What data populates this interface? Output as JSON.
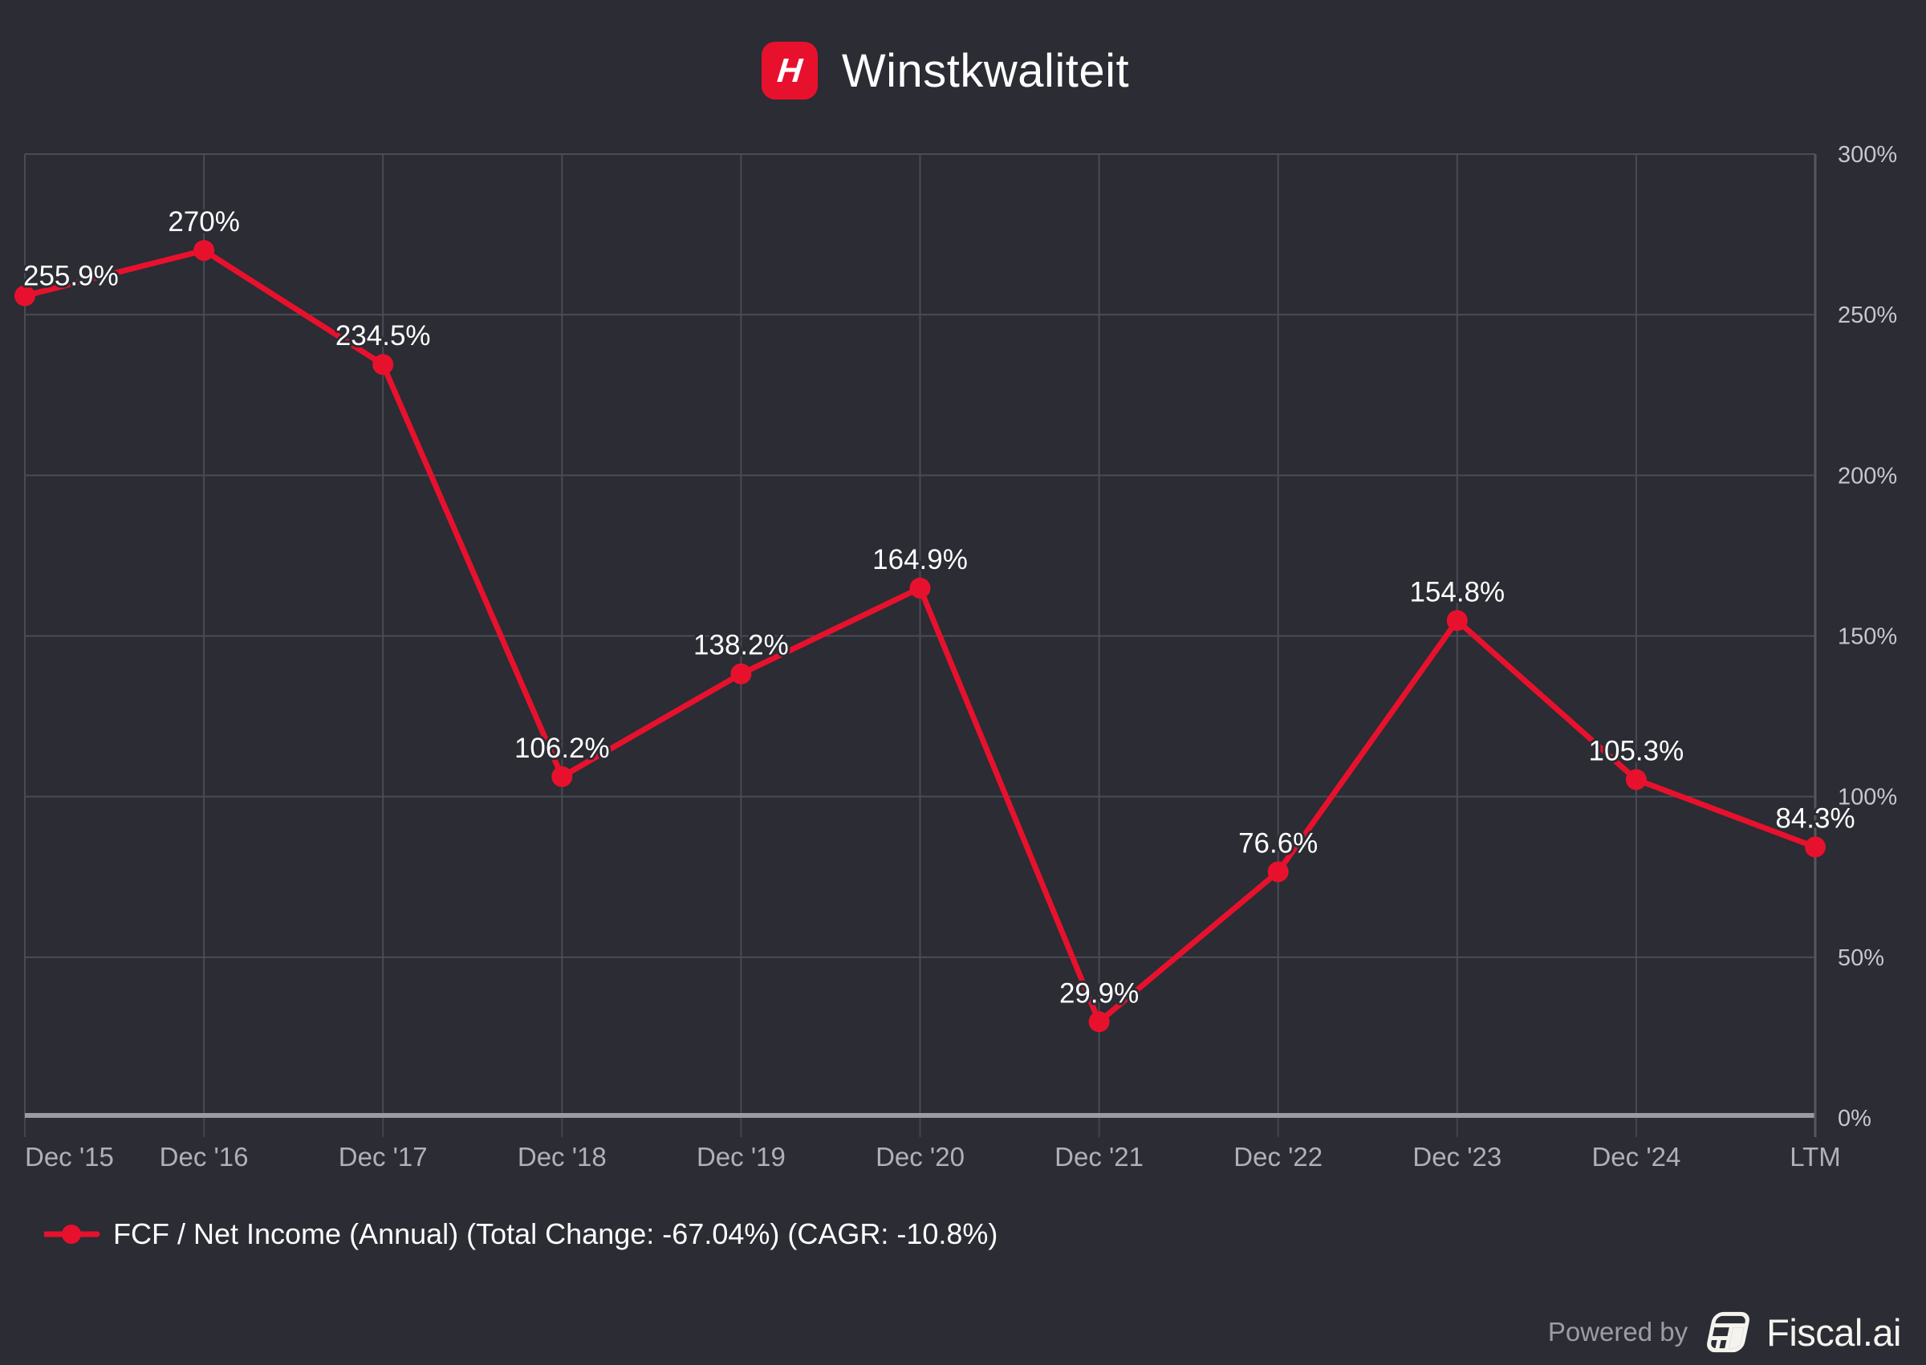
{
  "header": {
    "title": "Winstkwaliteit",
    "logo_letter": "H"
  },
  "chart_data": {
    "type": "line",
    "title": "Winstkwaliteit",
    "categories": [
      "Dec '15",
      "Dec '16",
      "Dec '17",
      "Dec '18",
      "Dec '19",
      "Dec '20",
      "Dec '21",
      "Dec '22",
      "Dec '23",
      "Dec '24",
      "LTM"
    ],
    "series": [
      {
        "name": "FCF / Net Income (Annual) (Total Change: -67.04%) (CAGR: -10.8%)",
        "values": [
          255.9,
          270,
          234.5,
          106.2,
          138.2,
          164.9,
          29.9,
          76.6,
          154.8,
          105.3,
          84.3
        ],
        "point_labels": [
          "255.9%",
          "270%",
          "234.5%",
          "106.2%",
          "138.2%",
          "164.9%",
          "29.9%",
          "76.6%",
          "154.8%",
          "105.3%",
          "84.3%"
        ]
      }
    ],
    "xlabel": "",
    "ylabel": "",
    "ylim": [
      0,
      300
    ],
    "y_ticks": [
      {
        "value": 0,
        "label": "0%"
      },
      {
        "value": 50,
        "label": "50%"
      },
      {
        "value": 100,
        "label": "100%"
      },
      {
        "value": 150,
        "label": "150%"
      },
      {
        "value": 200,
        "label": "200%"
      },
      {
        "value": 250,
        "label": "250%"
      },
      {
        "value": 300,
        "label": "300%"
      }
    ],
    "grid": true,
    "y_axis_side": "right",
    "legend_position": "bottom-left"
  },
  "legend": {
    "label": "FCF / Net Income (Annual) (Total Change: -67.04%) (CAGR: -10.8%)"
  },
  "footer": {
    "powered_by": "Powered by",
    "brand": "Fiscal.ai"
  },
  "colors": {
    "background": "#2b2c34",
    "accent": "#e8112d",
    "grid": "#4a4b55",
    "x_axis_line": "#9b9ca2",
    "y_axis_line": "#55565f",
    "tick": "#43444c",
    "data_label": "#ffffff",
    "y_tick_label": "#c6c7cd",
    "x_tick_label": "#b0b1b8",
    "title_text": "#ffffff",
    "legend_text": "#ffffff",
    "powered_by_text": "#9c9da3",
    "brand_text": "#f5f3ee"
  }
}
